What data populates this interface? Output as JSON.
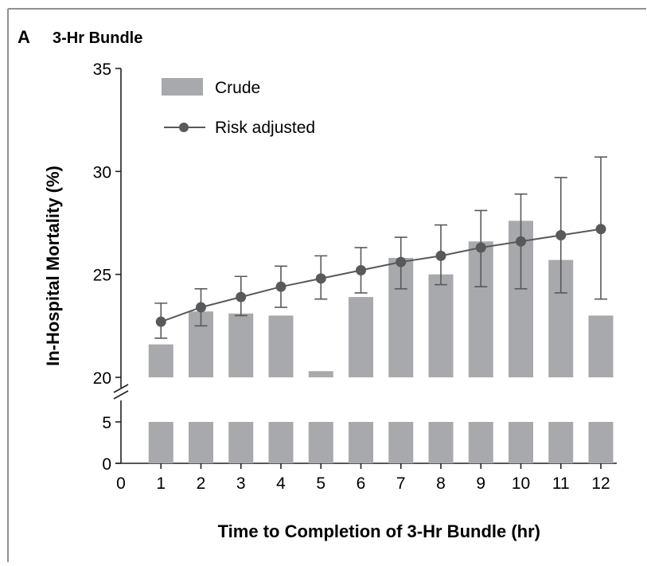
{
  "panel": {
    "letter": "A",
    "title": "3-Hr Bundle"
  },
  "chart_data": {
    "type": "bar",
    "title": "3-Hr Bundle",
    "xlabel": "Time to Completion of 3-Hr Bundle (hr)",
    "ylabel": "In-Hospital Mortality (%)",
    "categories": [
      1,
      2,
      3,
      4,
      5,
      6,
      7,
      8,
      9,
      10,
      11,
      12
    ],
    "x_ticks": [
      0,
      1,
      2,
      3,
      4,
      5,
      6,
      7,
      8,
      9,
      10,
      11,
      12
    ],
    "y_ticks_upper": [
      20,
      25,
      30,
      35
    ],
    "y_ticks_lower": [
      0,
      5
    ],
    "y_axis_break": true,
    "ylim_upper": [
      20,
      35
    ],
    "ylim_lower": [
      0,
      5
    ],
    "grid": false,
    "legend_position": "top-left",
    "series": [
      {
        "name": "Crude",
        "type": "bar",
        "color": "#a7a9ac",
        "values": [
          21.6,
          23.2,
          23.1,
          23.0,
          20.3,
          23.9,
          25.8,
          25.0,
          26.6,
          27.6,
          25.7,
          23.0
        ]
      },
      {
        "name": "Risk adjusted",
        "type": "line",
        "color": "#58595b",
        "values": [
          22.7,
          23.4,
          23.9,
          24.4,
          24.8,
          25.2,
          25.6,
          25.9,
          26.3,
          26.6,
          26.9,
          27.2
        ],
        "ci_low": [
          21.9,
          22.5,
          23.0,
          23.4,
          23.8,
          24.1,
          24.3,
          24.5,
          24.4,
          24.3,
          24.1,
          23.8
        ],
        "ci_high": [
          23.6,
          24.3,
          24.9,
          25.4,
          25.9,
          26.3,
          26.8,
          27.4,
          28.1,
          28.9,
          29.7,
          30.7
        ]
      }
    ]
  }
}
